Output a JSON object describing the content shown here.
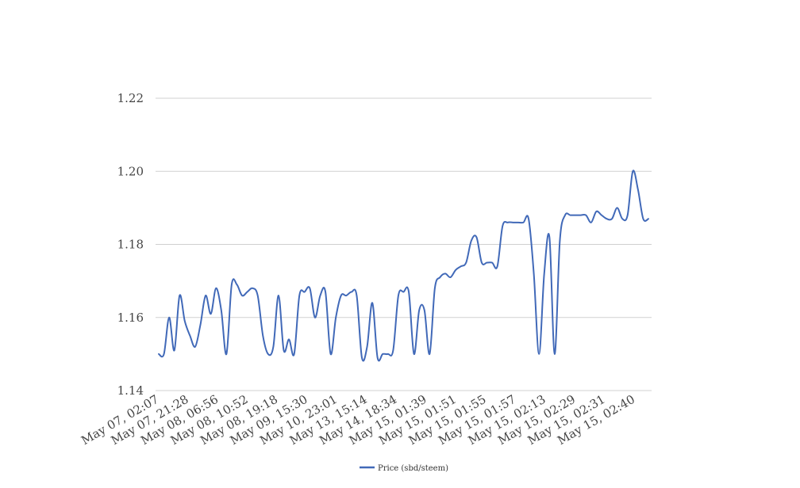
{
  "chart_data": {
    "type": "line",
    "title": "",
    "xlabel": "",
    "ylabel": "",
    "ylim": [
      1.14,
      1.22
    ],
    "y_ticks": [
      "1.14",
      "1.16",
      "1.18",
      "1.20",
      "1.22"
    ],
    "x_tick_labels": [
      "May 07, 02:07",
      "May 07, 21:28",
      "May 08, 06:56",
      "May 08, 10:52",
      "May 08, 19:18",
      "May 09, 15:30",
      "May 10, 23:01",
      "May 13, 15:14",
      "May 14, 18:34",
      "May 15, 01:39",
      "May 15, 01:51",
      "May 15, 01:55",
      "May 15, 01:57",
      "May 15, 02:13",
      "May 15, 02:29",
      "May 15, 02:31",
      "May 15, 02:40"
    ],
    "grid": true,
    "legend_position": "bottom",
    "series": [
      {
        "name": "Price (sbd/steem)",
        "color": "#4169b8",
        "values": [
          1.15,
          1.15,
          1.16,
          1.151,
          1.166,
          1.159,
          1.155,
          1.152,
          1.158,
          1.166,
          1.161,
          1.168,
          1.162,
          1.15,
          1.169,
          1.169,
          1.166,
          1.167,
          1.168,
          1.166,
          1.155,
          1.15,
          1.152,
          1.166,
          1.151,
          1.154,
          1.15,
          1.166,
          1.167,
          1.168,
          1.16,
          1.166,
          1.167,
          1.15,
          1.16,
          1.166,
          1.166,
          1.167,
          1.166,
          1.149,
          1.152,
          1.164,
          1.149,
          1.15,
          1.15,
          1.151,
          1.166,
          1.167,
          1.167,
          1.15,
          1.162,
          1.162,
          1.15,
          1.168,
          1.171,
          1.172,
          1.171,
          1.173,
          1.174,
          1.175,
          1.181,
          1.182,
          1.175,
          1.175,
          1.175,
          1.174,
          1.185,
          1.186,
          1.186,
          1.186,
          1.186,
          1.187,
          1.172,
          1.15,
          1.172,
          1.182,
          1.15,
          1.181,
          1.188,
          1.188,
          1.188,
          1.188,
          1.188,
          1.186,
          1.189,
          1.188,
          1.187,
          1.187,
          1.19,
          1.187,
          1.188,
          1.2,
          1.195,
          1.187,
          1.187
        ]
      }
    ]
  }
}
